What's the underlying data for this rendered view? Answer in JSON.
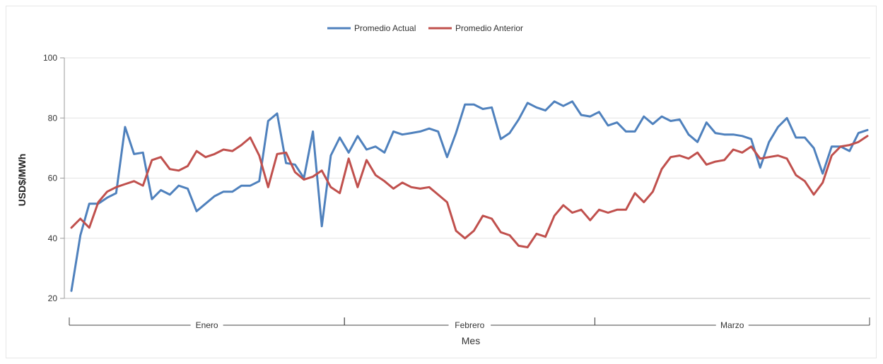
{
  "chart_data": {
    "type": "line",
    "title": "",
    "xlabel": "Mes",
    "ylabel": "USD$/MWh",
    "ylim": [
      20,
      100
    ],
    "yticks": [
      "20",
      "40",
      "60",
      "80",
      "100"
    ],
    "grid": "horizontal",
    "legend_position": "top-center",
    "months": [
      {
        "label": "Enero",
        "start": 0,
        "end": 31
      },
      {
        "label": "Febrero",
        "start": 31,
        "end": 59
      },
      {
        "label": "Marzo",
        "start": 59,
        "end": 90
      }
    ],
    "x": [
      1,
      2,
      3,
      4,
      5,
      6,
      7,
      8,
      9,
      10,
      11,
      12,
      13,
      14,
      15,
      16,
      17,
      18,
      19,
      20,
      21,
      22,
      23,
      24,
      25,
      26,
      27,
      28,
      29,
      30,
      31,
      32,
      33,
      34,
      35,
      36,
      37,
      38,
      39,
      40,
      41,
      42,
      43,
      44,
      45,
      46,
      47,
      48,
      49,
      50,
      51,
      52,
      53,
      54,
      55,
      56,
      57,
      58,
      59,
      60,
      61,
      62,
      63,
      64,
      65,
      66,
      67,
      68,
      69,
      70,
      71,
      72,
      73,
      74,
      75,
      76,
      77,
      78,
      79,
      80,
      81,
      82,
      83,
      84,
      85,
      86,
      87,
      88,
      89,
      90
    ],
    "series": [
      {
        "name": "Promedio Actual",
        "color": "#4f81bd",
        "values": [
          22.5,
          41,
          51.5,
          51.5,
          53.5,
          55,
          77,
          68,
          68.5,
          53,
          56,
          54.5,
          57.5,
          56.5,
          49,
          51.5,
          54,
          55.5,
          55.5,
          57.5,
          57.5,
          59,
          79,
          81.5,
          65,
          64.5,
          60,
          75.5,
          44,
          67.5,
          73.5,
          68.5,
          74,
          69.5,
          70.5,
          68.5,
          75.5,
          74.5,
          75,
          75.5,
          76.5,
          75.5,
          67,
          75,
          84.5,
          84.5,
          83,
          83.5,
          73,
          75,
          79.5,
          85,
          83.5,
          82.5,
          85.5,
          84,
          85.5,
          81,
          80.5,
          82,
          77.5,
          78.5,
          75.5,
          75.5,
          80.5,
          78,
          80.5,
          79,
          79.5,
          74.5,
          72,
          78.5,
          75,
          74.5,
          74.5,
          74,
          73,
          63.5,
          72,
          77,
          80,
          73.5,
          73.5,
          70,
          61.5,
          70.5,
          70.5,
          69,
          75,
          76
        ]
      },
      {
        "name": "Promedio Anterior",
        "color": "#c0504d",
        "values": [
          43.5,
          46.5,
          43.5,
          52,
          55.5,
          57,
          58,
          59,
          57.5,
          66,
          67,
          63,
          62.5,
          64,
          69,
          67,
          68,
          69.5,
          69,
          71,
          73.5,
          67.5,
          57,
          68,
          68.5,
          62,
          59.5,
          60.5,
          62.5,
          57,
          55,
          66.5,
          57,
          66,
          61,
          59,
          56.5,
          58.5,
          57,
          56.5,
          57,
          54.5,
          52,
          42.5,
          40,
          42.5,
          47.5,
          46.5,
          42,
          41,
          37.5,
          37,
          41.5,
          40.5,
          47.5,
          51,
          48.5,
          49.5,
          46,
          49.5,
          48.5,
          49.5,
          49.5,
          55,
          52,
          55.5,
          63,
          67,
          67.5,
          66.5,
          68.5,
          64.5,
          65.5,
          66,
          69.5,
          68.5,
          70.5,
          66.5,
          67,
          67.5,
          66.5,
          61,
          59,
          54.5,
          58.5,
          67.5,
          70.5,
          71,
          72,
          74
        ]
      }
    ]
  }
}
